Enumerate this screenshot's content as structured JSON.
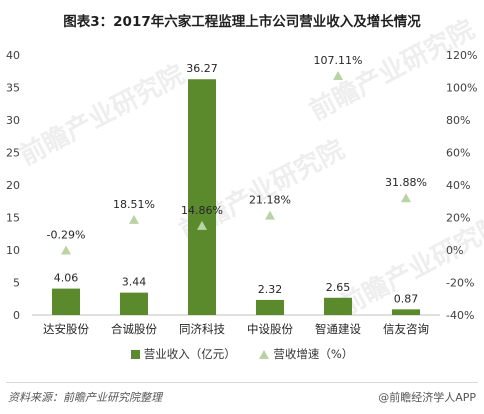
{
  "chart_title": "图表3：2017年六家工程监理上市公司营业收入及增长情况",
  "watermark": "前瞻产业研究院",
  "legend": {
    "revenue": "营业收入（亿元）",
    "growth": "营收增速（%）"
  },
  "footer": {
    "source": "资料来源：前瞻产业研究院整理",
    "brand": "@前瞻经济学人APP"
  },
  "colors": {
    "bar": "#5a8a2c",
    "marker": "#b9d3a4"
  },
  "chart_data": {
    "type": "bar",
    "categories": [
      "达安股份",
      "合诚股份",
      "同济科技",
      "中设股份",
      "智通建设",
      "信友咨询"
    ],
    "series": [
      {
        "name": "营业收入（亿元）",
        "type": "bar",
        "axis": "left",
        "values": [
          4.06,
          3.44,
          36.27,
          2.32,
          2.65,
          0.87
        ],
        "labels": [
          "4.06",
          "3.44",
          "36.27",
          "2.32",
          "2.65",
          "0.87"
        ]
      },
      {
        "name": "营收增速（%）",
        "type": "scatter",
        "axis": "right",
        "values": [
          -0.29,
          18.51,
          14.86,
          21.18,
          107.11,
          31.88
        ],
        "labels": [
          "-0.29%",
          "18.51%",
          "14.86%",
          "21.18%",
          "107.11%",
          "31.88%"
        ]
      }
    ],
    "y_left": {
      "min": 0,
      "max": 40,
      "ticks": [
        "0",
        "5",
        "10",
        "15",
        "20",
        "25",
        "30",
        "35",
        "40"
      ]
    },
    "y_right": {
      "min": -40,
      "max": 120,
      "ticks": [
        "-40%",
        "-20%",
        "0%",
        "20%",
        "40%",
        "60%",
        "80%",
        "100%",
        "120%"
      ]
    },
    "legend_position": "bottom",
    "grid": false
  }
}
